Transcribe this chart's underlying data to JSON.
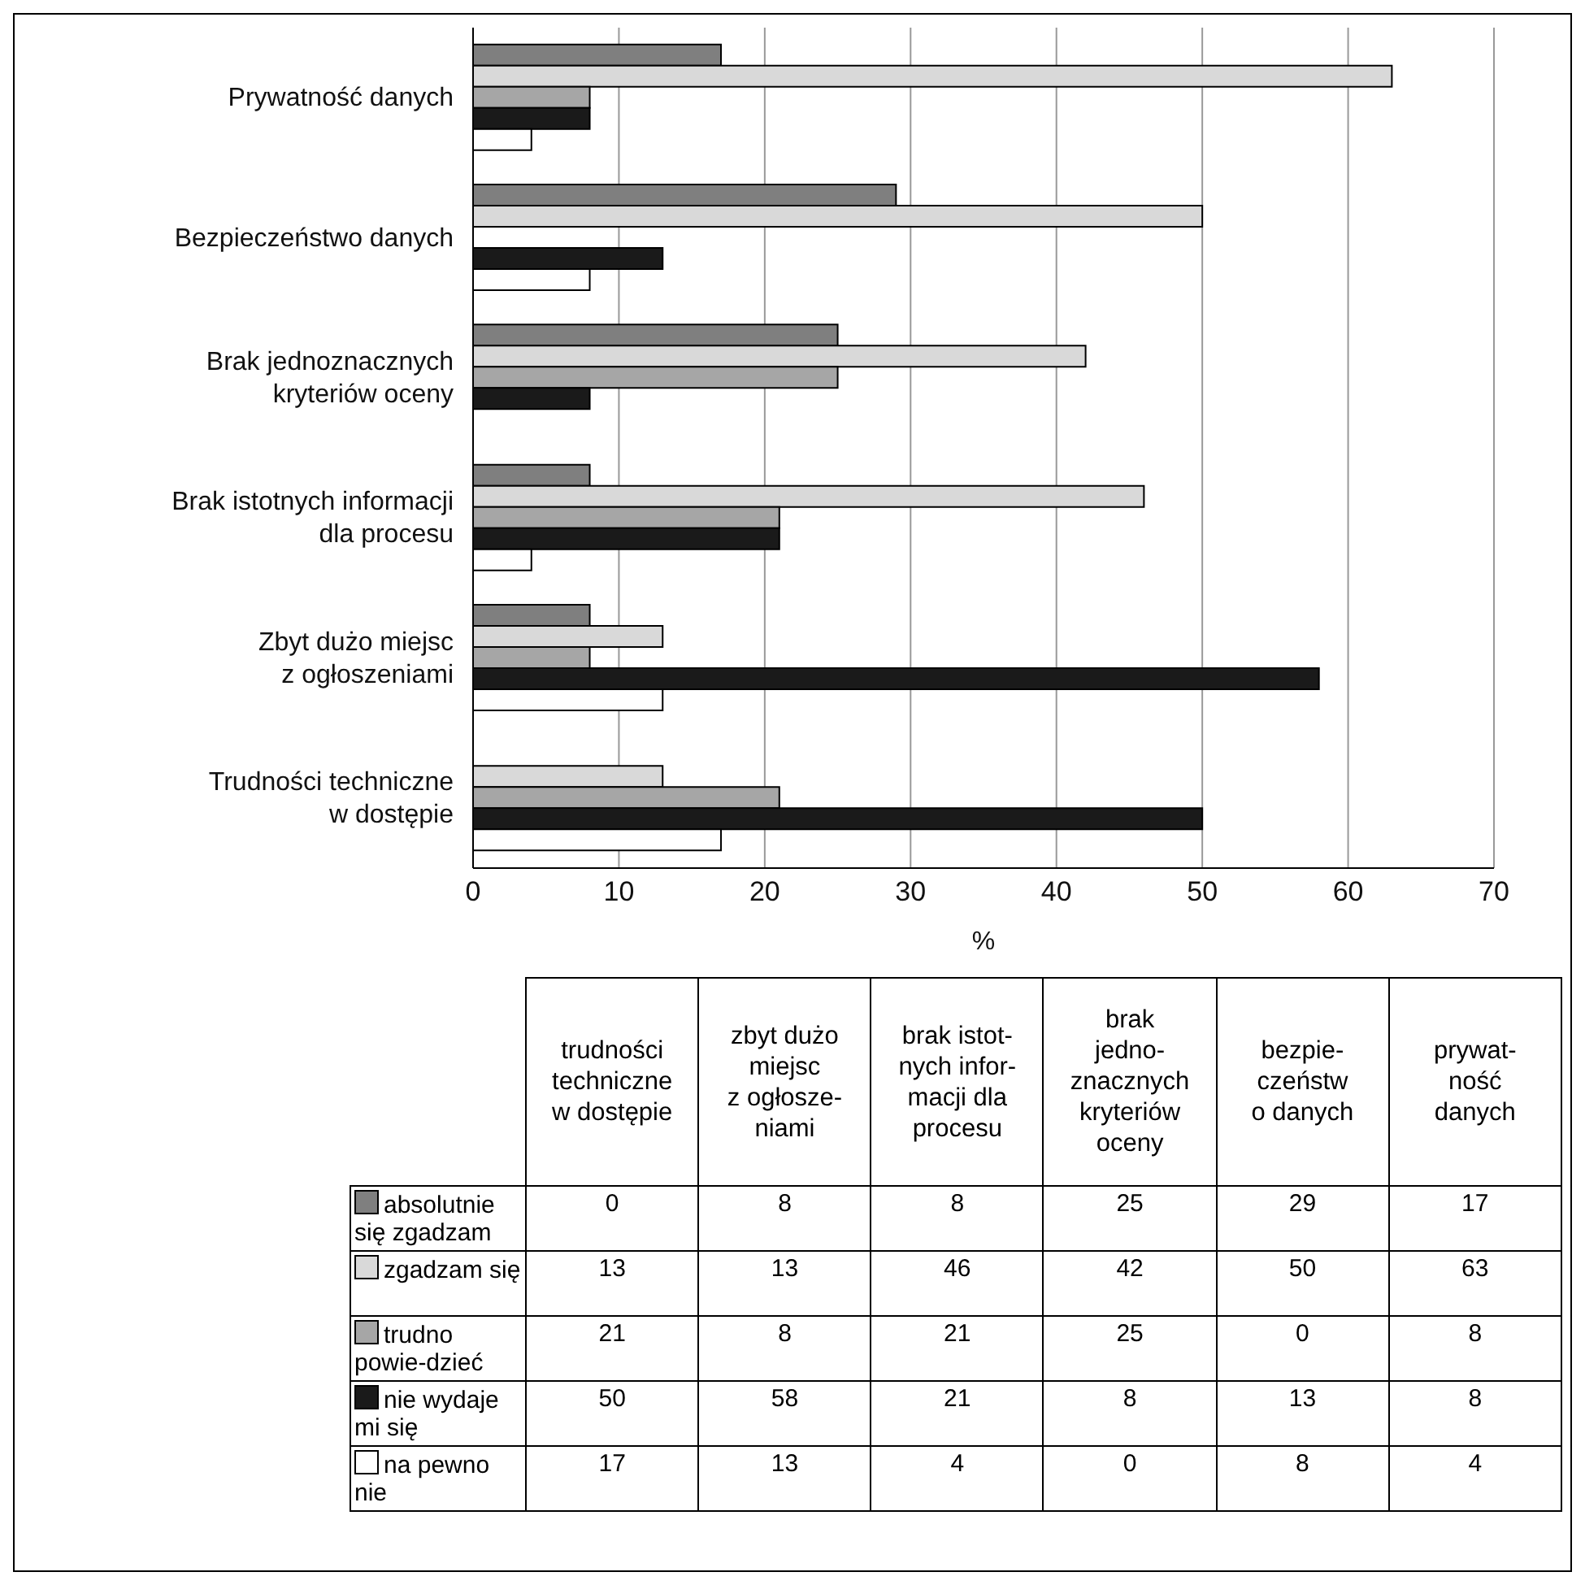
{
  "chart_data": [
    {
      "type": "bar",
      "orientation": "horizontal",
      "categories": [
        "Prywatność danych",
        "Bezpieczeństwo danych",
        "Brak jednoznacznych\nkryteriów oceny",
        "Brak istotnych informacji\ndla procesu",
        "Zbyt dużo miejsc\nz ogłoszeniami",
        "Trudności techniczne\nw dostępie"
      ],
      "series": [
        {
          "color": "#7f7f7f",
          "values": [
            17,
            29,
            25,
            8,
            8,
            0
          ]
        },
        {
          "color": "#d9d9d9",
          "values": [
            63,
            50,
            42,
            46,
            13,
            13
          ]
        },
        {
          "color": "#a6a6a6",
          "values": [
            8,
            0,
            25,
            21,
            8,
            21
          ]
        },
        {
          "color": "#1a1a1a",
          "values": [
            8,
            13,
            8,
            21,
            58,
            50
          ]
        },
        {
          "color": "#ffffff",
          "values": [
            4,
            8,
            0,
            4,
            13,
            17
          ]
        }
      ],
      "xlim": [
        0,
        70
      ],
      "xticks": [
        0,
        10,
        20,
        30,
        40,
        50,
        60,
        70
      ],
      "xlabel": "%",
      "grid": "x"
    },
    {
      "type": "other",
      "categories": [
        "trudności\ntechniczne\nw dostępie",
        "zbyt dużo\nmiejsc\nz ogłosze-\nniami",
        "brak istot-\nnych infor-\nmacji dla\nprocesu",
        "brak\njedno-\nznacznych\nkryteriów\noceny",
        "bezpie-\nczeństw\no danych",
        "prywat-\nność\ndanych"
      ],
      "series": [
        {
          "name": "absolutnie się zgadzam",
          "color": "#7f7f7f",
          "values": [
            0,
            8,
            8,
            25,
            29,
            17
          ]
        },
        {
          "name": "zgadzam się",
          "color": "#d9d9d9",
          "values": [
            13,
            13,
            46,
            42,
            50,
            63
          ]
        },
        {
          "name": "trudno powie-dzieć",
          "color": "#a6a6a6",
          "values": [
            21,
            8,
            21,
            25,
            0,
            8
          ]
        },
        {
          "name": "nie wydaje mi się",
          "color": "#1a1a1a",
          "values": [
            50,
            58,
            21,
            8,
            13,
            8
          ]
        },
        {
          "name": "na pewno nie",
          "color": "#ffffff",
          "values": [
            17,
            13,
            4,
            0,
            8,
            4
          ]
        }
      ],
      "legend": "left",
      "data_labels": true
    }
  ]
}
